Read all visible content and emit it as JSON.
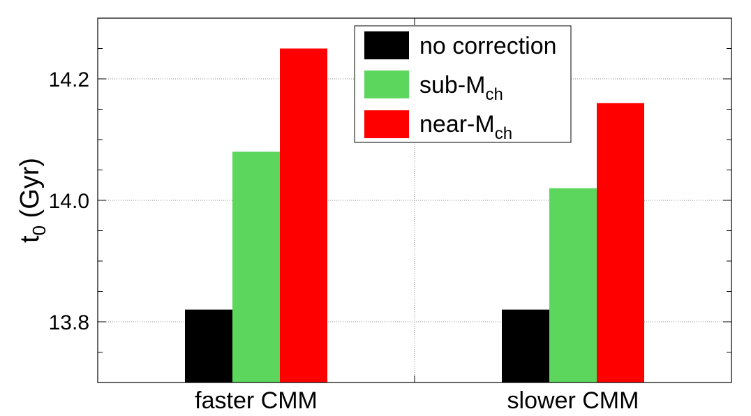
{
  "chart_data": {
    "type": "bar",
    "categories": [
      "faster CMM",
      "slower CMM"
    ],
    "series": [
      {
        "name": "no correction",
        "color": "#000000",
        "values": [
          13.82,
          13.82
        ]
      },
      {
        "name": "sub-M",
        "name_sub": "ch",
        "color": "#5cd65c",
        "values": [
          14.08,
          14.02
        ]
      },
      {
        "name": "near-M",
        "name_sub": "ch",
        "color": "#ff0000",
        "values": [
          14.25,
          14.16
        ]
      }
    ],
    "ylabel": "t",
    "ylabel_sub": "0",
    "ylabel_rest": " (Gyr)",
    "ylim": [
      13.7,
      14.3
    ],
    "yticks": [
      "13.8",
      "14.0",
      "14.2"
    ],
    "grid": true,
    "legend_position": "top-center"
  }
}
